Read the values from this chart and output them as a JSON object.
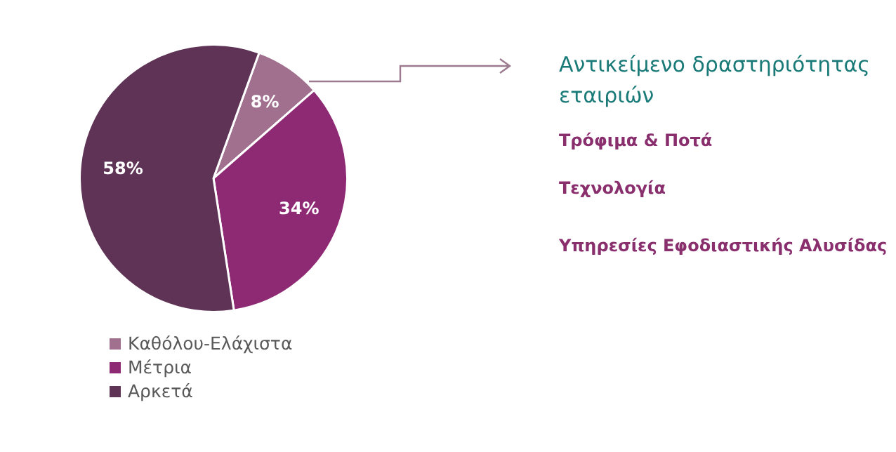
{
  "chart_data": {
    "type": "pie",
    "title": "Αντικείμενο δραστηριότητας εταιριών",
    "categories": [
      "Καθόλου-Ελάχιστα",
      "Μέτρια",
      "Αρκετά"
    ],
    "values": [
      8,
      34,
      58
    ],
    "colors": [
      "#a0708e",
      "#8e2a74",
      "#5e3355"
    ],
    "value_labels": [
      "8%",
      "34%",
      "58%"
    ],
    "legend": "bottom left",
    "annotations": [
      "Τρόφιμα & Ποτά",
      "Τεχνολογία",
      "Υπηρεσίες Εφοδιαστικής Αλυσίδας"
    ]
  }
}
